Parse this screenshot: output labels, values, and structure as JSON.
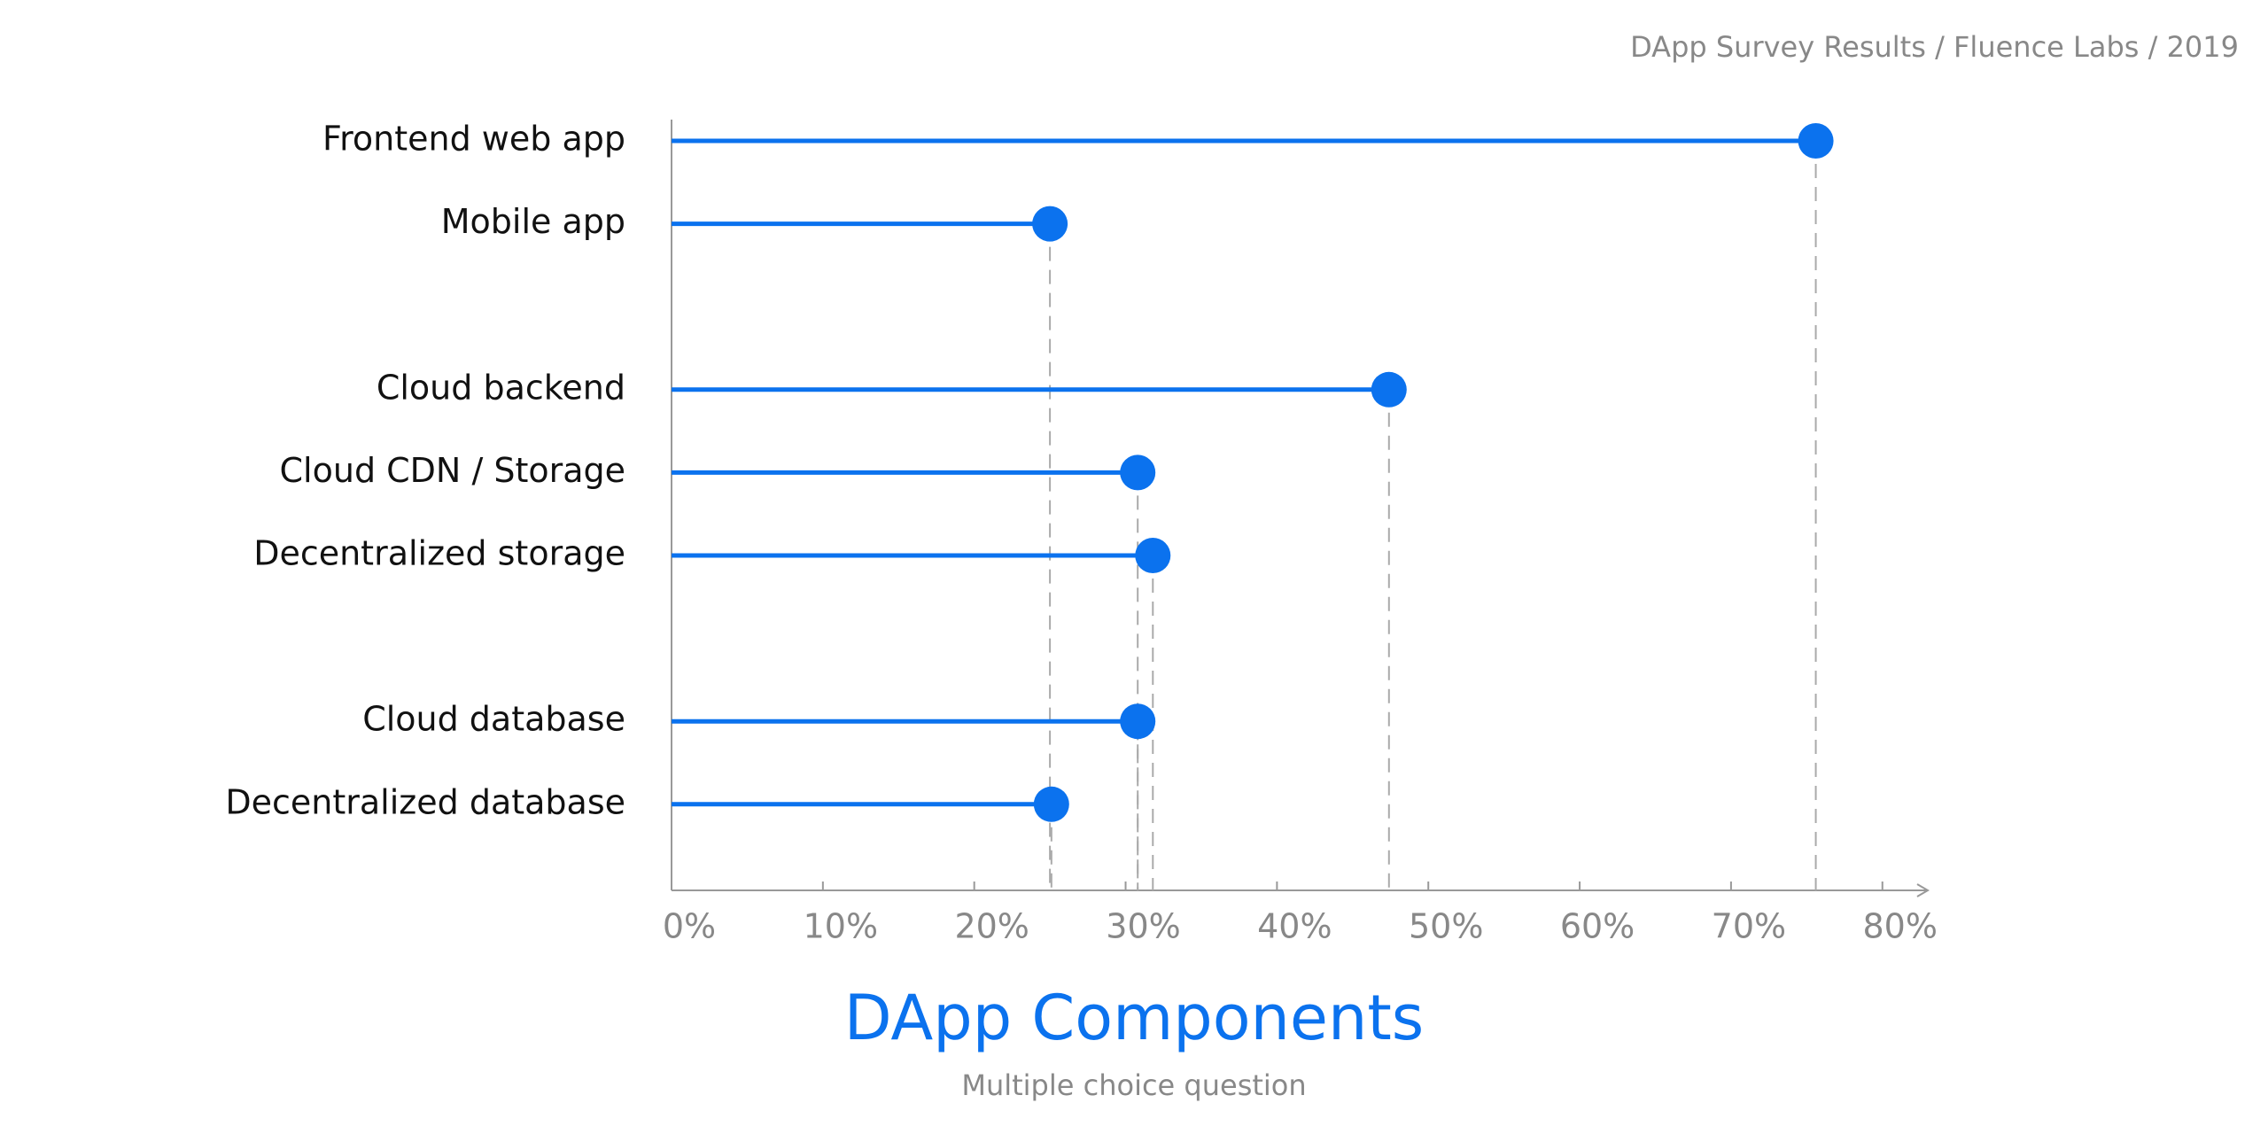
{
  "chart_data": {
    "type": "lollipop",
    "title": "DApp Components",
    "subtitle": "Multiple choice question",
    "annotation": "DApp Survey Results / Fluence Labs / 2019",
    "categories": [
      "Frontend web app",
      "Mobile app",
      null,
      "Cloud backend",
      "Cloud CDN / Storage",
      "Decentralized storage",
      null,
      "Cloud database",
      "Decentralized database"
    ],
    "values": [
      75.6,
      25,
      null,
      47.4,
      30.8,
      31.8,
      null,
      30.8,
      25.1
    ],
    "color": "#0b72ee",
    "xlim": [
      0,
      83
    ],
    "xticks": [
      {
        "value": 0,
        "label": "0%"
      },
      {
        "value": 10,
        "label": "10%"
      },
      {
        "value": 20,
        "label": "20%"
      },
      {
        "value": 30,
        "label": "30%"
      },
      {
        "value": 40,
        "label": "40%"
      },
      {
        "value": 50,
        "label": "50%"
      },
      {
        "value": 60,
        "label": "60%"
      },
      {
        "value": 70,
        "label": "70%"
      },
      {
        "value": 80,
        "label": "80%"
      }
    ]
  }
}
